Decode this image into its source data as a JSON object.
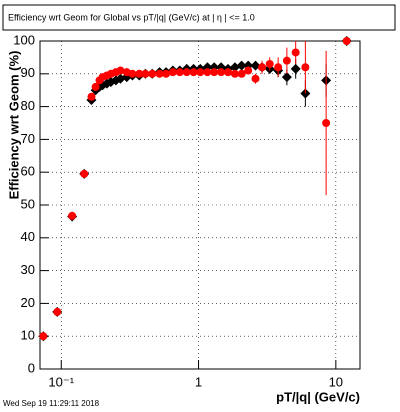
{
  "chart_data": {
    "type": "scatter",
    "title": "Efficiency wrt Geom for Global vs pT/|q| (GeV/c) at |  η | <= 1.0",
    "x_label": "pT/|q| (GeV/c)",
    "y_label": "Efficiency wrt Geom (%)",
    "footer": "Wed Sep 19 11:29:11 2018",
    "log_x": true,
    "grid": true,
    "xlim": [
      0.07,
      15
    ],
    "ylim": [
      0,
      100
    ],
    "xticks": [
      {
        "value": 0.1,
        "label": "10⁻¹"
      },
      1,
      10
    ],
    "yticks": [
      0,
      10,
      20,
      30,
      40,
      50,
      60,
      70,
      80,
      90,
      100
    ],
    "x": [
      0.074,
      0.0935,
      0.12,
      0.147,
      0.166,
      0.178,
      0.19,
      0.2,
      0.215,
      0.23,
      0.25,
      0.27,
      0.3,
      0.33,
      0.37,
      0.41,
      0.46,
      0.52,
      0.58,
      0.65,
      0.73,
      0.82,
      0.92,
      1.03,
      1.16,
      1.3,
      1.46,
      1.64,
      1.84,
      2.06,
      2.3,
      2.6,
      2.9,
      3.3,
      3.8,
      4.4,
      5.1,
      6.0,
      8.5,
      12
    ],
    "series": [
      {
        "color": "#000000",
        "marker": "diamond",
        "values": [
          10,
          17.4,
          46.5,
          59.5,
          82,
          85,
          86,
          86.5,
          87,
          87.5,
          88,
          88.5,
          89,
          89.5,
          89.5,
          90,
          90,
          90.5,
          90.5,
          91,
          91,
          91.5,
          91.5,
          91.5,
          92,
          92,
          92,
          91.5,
          92,
          92.5,
          92.5,
          92.5,
          92,
          91.5,
          91,
          89,
          91.5,
          84,
          88,
          100
        ],
        "errors": [
          1,
          1,
          1,
          1,
          1,
          0.8,
          0.6,
          0.5,
          0.5,
          0.5,
          0.4,
          0.4,
          0.4,
          0.3,
          0.3,
          0.3,
          0.3,
          0.3,
          0.3,
          0.3,
          0.3,
          0.3,
          0.4,
          0.4,
          0.4,
          0.5,
          0.5,
          0.6,
          0.7,
          0.8,
          1,
          1,
          1.5,
          1.5,
          2,
          2.5,
          3,
          4,
          5,
          0
        ]
      },
      {
        "color": "#ff0000",
        "marker": "circle",
        "values": [
          10,
          17.4,
          46.7,
          59.5,
          83,
          86,
          88,
          89,
          89.5,
          90,
          90.5,
          91,
          90.5,
          90,
          90,
          90,
          90,
          90,
          90,
          90.5,
          90.5,
          90.5,
          90.5,
          90.5,
          90.5,
          90.5,
          90.5,
          90.5,
          90,
          90,
          91,
          88.5,
          92,
          93,
          92,
          94,
          96.5,
          92,
          75,
          100
        ],
        "errors": [
          1,
          1,
          1,
          1,
          1,
          0.8,
          0.6,
          0.5,
          0.5,
          0.5,
          0.4,
          0.4,
          0.4,
          0.3,
          0.3,
          0.3,
          0.3,
          0.3,
          0.3,
          0.3,
          0.3,
          0.3,
          0.4,
          0.4,
          0.4,
          0.5,
          0.5,
          0.6,
          0.7,
          0.8,
          1,
          1.5,
          2,
          2,
          3,
          4,
          3.5,
          8,
          22,
          0
        ]
      }
    ]
  }
}
